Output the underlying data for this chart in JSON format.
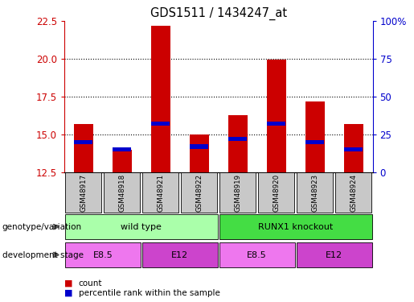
{
  "title": "GDS1511 / 1434247_at",
  "samples": [
    "GSM48917",
    "GSM48918",
    "GSM48921",
    "GSM48922",
    "GSM48919",
    "GSM48920",
    "GSM48923",
    "GSM48924"
  ],
  "counts": [
    15.7,
    14.0,
    22.2,
    15.0,
    16.3,
    19.95,
    17.2,
    15.7
  ],
  "percentile_ranks": [
    14.5,
    14.0,
    15.7,
    14.2,
    14.7,
    15.7,
    14.5,
    14.0
  ],
  "ylim_left": [
    12.5,
    22.5
  ],
  "ylim_right": [
    0,
    100
  ],
  "yticks_left": [
    12.5,
    15.0,
    17.5,
    20.0,
    22.5
  ],
  "yticks_right": [
    0,
    25,
    50,
    75,
    100
  ],
  "bar_color": "#cc0000",
  "percentile_color": "#0000cc",
  "bar_bottom": 12.5,
  "genotype_groups": [
    {
      "label": "wild type",
      "start": 0,
      "end": 4,
      "color": "#aaffaa"
    },
    {
      "label": "RUNX1 knockout",
      "start": 4,
      "end": 8,
      "color": "#44dd44"
    }
  ],
  "dev_stage_groups": [
    {
      "label": "E8.5",
      "start": 0,
      "end": 2,
      "color": "#ee77ee"
    },
    {
      "label": "E12",
      "start": 2,
      "end": 4,
      "color": "#cc44cc"
    },
    {
      "label": "E8.5",
      "start": 4,
      "end": 6,
      "color": "#ee77ee"
    },
    {
      "label": "E12",
      "start": 6,
      "end": 8,
      "color": "#cc44cc"
    }
  ],
  "left_axis_color": "#cc0000",
  "right_axis_color": "#0000cc",
  "label_row1": "genotype/variation",
  "label_row2": "development stage",
  "legend_count": "count",
  "legend_percentile": "percentile rank within the sample",
  "sample_bg_color": "#c8c8c8",
  "grid_yticks": [
    15.0,
    17.5,
    20.0
  ]
}
